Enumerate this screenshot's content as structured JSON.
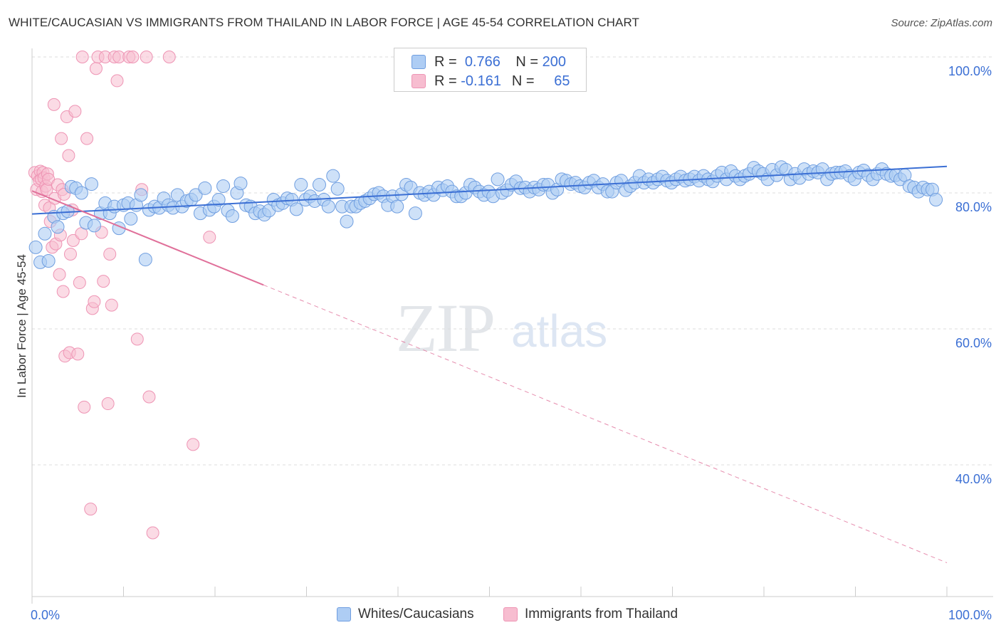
{
  "title": "WHITE/CAUCASIAN VS IMMIGRANTS FROM THAILAND IN LABOR FORCE | AGE 45-54 CORRELATION CHART",
  "source": "Source: ZipAtlas.com",
  "watermark": {
    "zip": "ZIP",
    "atlas": "atlas"
  },
  "colors": {
    "blue": "#3b6fd4",
    "blue_fill": "#aecdf4",
    "blue_stroke": "#6f9ee0",
    "pink": "#e0709a",
    "pink_fill": "#f7bdd0",
    "pink_stroke": "#ee94b4",
    "grid": "#dddddd",
    "axis_text": "#3b6fd4"
  },
  "legend_top": {
    "rows": [
      {
        "r_label": "R =",
        "r_value": "0.766",
        "n_label": "N =",
        "n_value": "200"
      },
      {
        "r_label": "R =",
        "r_value": "-0.161",
        "n_label": "N =",
        "n_value": "65"
      }
    ]
  },
  "legend_bottom": [
    "Whites/Caucasians",
    "Immigrants from Thailand"
  ],
  "chart_data": {
    "type": "scatter",
    "title": "WHITE/CAUCASIAN VS IMMIGRANTS FROM THAILAND IN LABOR FORCE | AGE 45-54 CORRELATION CHART",
    "xlabel": "",
    "ylabel": "In Labor Force | Age 45-54",
    "xlim": [
      0,
      100
    ],
    "ylim": [
      20,
      104
    ],
    "x_tick_labels": [
      {
        "value": 0,
        "label": "0.0%"
      },
      {
        "value": 100,
        "label": "100.0%"
      }
    ],
    "y_tick_labels": [
      {
        "value": 100,
        "label": "100.0%"
      },
      {
        "value": 80,
        "label": "80.0%"
      },
      {
        "value": 60,
        "label": "60.0%"
      },
      {
        "value": 40,
        "label": "40.0%"
      }
    ],
    "grid": true,
    "legend_position": "top-center",
    "series": [
      {
        "name": "Whites/Caucasians",
        "color": "#3b6fd4",
        "trend": {
          "x": [
            0,
            100
          ],
          "y": [
            76.9,
            83.9
          ],
          "style": "solid"
        },
        "points": [
          [
            0.4,
            72.0
          ],
          [
            0.9,
            69.8
          ],
          [
            1.4,
            74.0
          ],
          [
            1.8,
            70.0
          ],
          [
            2.4,
            76.5
          ],
          [
            2.8,
            75.0
          ],
          [
            3.4,
            77.0
          ],
          [
            3.9,
            77.3
          ],
          [
            4.3,
            80.9
          ],
          [
            4.8,
            80.7
          ],
          [
            5.4,
            80.0
          ],
          [
            5.9,
            75.6
          ],
          [
            6.5,
            81.3
          ],
          [
            6.8,
            75.2
          ],
          [
            7.5,
            77.0
          ],
          [
            8.0,
            78.5
          ],
          [
            8.5,
            77.0
          ],
          [
            9.0,
            78.0
          ],
          [
            9.5,
            74.8
          ],
          [
            10.0,
            78.2
          ],
          [
            10.5,
            78.5
          ],
          [
            10.8,
            76.2
          ],
          [
            11.4,
            78.2
          ],
          [
            11.9,
            79.7
          ],
          [
            12.4,
            70.2
          ],
          [
            12.8,
            77.5
          ],
          [
            13.4,
            78.0
          ],
          [
            13.9,
            77.8
          ],
          [
            14.4,
            79.2
          ],
          [
            14.9,
            78.2
          ],
          [
            15.4,
            77.8
          ],
          [
            15.9,
            79.7
          ],
          [
            16.4,
            78.0
          ],
          [
            16.9,
            78.8
          ],
          [
            17.4,
            79.0
          ],
          [
            17.9,
            79.7
          ],
          [
            18.4,
            77.0
          ],
          [
            18.9,
            80.7
          ],
          [
            19.4,
            77.5
          ],
          [
            19.9,
            78.0
          ],
          [
            20.4,
            79.0
          ],
          [
            20.9,
            81.0
          ],
          [
            21.4,
            77.4
          ],
          [
            21.9,
            76.6
          ],
          [
            22.4,
            80.0
          ],
          [
            22.8,
            81.4
          ],
          [
            23.4,
            78.2
          ],
          [
            23.9,
            78.0
          ],
          [
            24.4,
            77.0
          ],
          [
            24.9,
            77.3
          ],
          [
            25.4,
            76.8
          ],
          [
            25.9,
            77.4
          ],
          [
            26.4,
            79.0
          ],
          [
            26.9,
            78.2
          ],
          [
            27.4,
            78.5
          ],
          [
            27.9,
            79.2
          ],
          [
            28.4,
            79.0
          ],
          [
            28.9,
            77.6
          ],
          [
            29.4,
            81.2
          ],
          [
            29.9,
            79.0
          ],
          [
            30.4,
            79.5
          ],
          [
            30.9,
            78.8
          ],
          [
            31.4,
            81.2
          ],
          [
            31.9,
            79.0
          ],
          [
            32.4,
            78.0
          ],
          [
            32.9,
            82.5
          ],
          [
            33.4,
            80.6
          ],
          [
            33.9,
            78.0
          ],
          [
            34.4,
            75.8
          ],
          [
            34.9,
            78.0
          ],
          [
            35.4,
            78.0
          ],
          [
            35.9,
            78.5
          ],
          [
            36.4,
            78.8
          ],
          [
            36.9,
            79.2
          ],
          [
            37.4,
            79.8
          ],
          [
            37.9,
            80.0
          ],
          [
            38.4,
            79.5
          ],
          [
            38.9,
            78.2
          ],
          [
            39.4,
            79.5
          ],
          [
            39.9,
            78.0
          ],
          [
            40.4,
            79.8
          ],
          [
            40.9,
            81.2
          ],
          [
            41.4,
            80.8
          ],
          [
            41.9,
            77.0
          ],
          [
            42.4,
            80.0
          ],
          [
            42.9,
            79.7
          ],
          [
            43.4,
            80.2
          ],
          [
            43.9,
            79.7
          ],
          [
            44.4,
            80.8
          ],
          [
            44.9,
            80.4
          ],
          [
            45.4,
            81.0
          ],
          [
            45.9,
            80.2
          ],
          [
            46.4,
            79.5
          ],
          [
            46.9,
            79.5
          ],
          [
            47.4,
            80.0
          ],
          [
            47.9,
            81.2
          ],
          [
            48.4,
            80.8
          ],
          [
            48.9,
            80.2
          ],
          [
            49.4,
            79.7
          ],
          [
            49.9,
            80.2
          ],
          [
            50.4,
            79.5
          ],
          [
            50.9,
            82.0
          ],
          [
            51.4,
            80.0
          ],
          [
            51.9,
            80.4
          ],
          [
            52.4,
            81.2
          ],
          [
            52.9,
            81.7
          ],
          [
            53.4,
            80.7
          ],
          [
            53.9,
            80.8
          ],
          [
            54.4,
            80.2
          ],
          [
            54.9,
            80.8
          ],
          [
            55.4,
            80.5
          ],
          [
            55.9,
            81.2
          ],
          [
            56.4,
            81.2
          ],
          [
            56.9,
            80.0
          ],
          [
            57.4,
            80.5
          ],
          [
            57.9,
            82.0
          ],
          [
            58.4,
            81.8
          ],
          [
            58.9,
            81.3
          ],
          [
            59.4,
            81.5
          ],
          [
            59.9,
            81.0
          ],
          [
            60.4,
            80.8
          ],
          [
            60.9,
            81.5
          ],
          [
            61.4,
            81.8
          ],
          [
            61.9,
            80.8
          ],
          [
            62.4,
            81.3
          ],
          [
            62.9,
            80.2
          ],
          [
            63.4,
            80.2
          ],
          [
            63.9,
            81.5
          ],
          [
            64.4,
            81.8
          ],
          [
            64.9,
            80.4
          ],
          [
            65.4,
            81.0
          ],
          [
            65.9,
            81.5
          ],
          [
            66.4,
            82.5
          ],
          [
            66.9,
            81.5
          ],
          [
            67.4,
            82.0
          ],
          [
            67.9,
            81.5
          ],
          [
            68.4,
            82.0
          ],
          [
            68.9,
            82.4
          ],
          [
            69.4,
            81.8
          ],
          [
            69.9,
            81.5
          ],
          [
            70.4,
            82.0
          ],
          [
            70.9,
            82.4
          ],
          [
            71.4,
            81.8
          ],
          [
            71.9,
            82.0
          ],
          [
            72.4,
            82.4
          ],
          [
            72.9,
            81.8
          ],
          [
            73.4,
            82.5
          ],
          [
            73.9,
            82.0
          ],
          [
            74.4,
            81.7
          ],
          [
            74.9,
            82.5
          ],
          [
            75.4,
            83.0
          ],
          [
            75.9,
            82.0
          ],
          [
            76.4,
            83.2
          ],
          [
            76.9,
            82.5
          ],
          [
            77.4,
            82.0
          ],
          [
            77.9,
            82.5
          ],
          [
            78.4,
            82.8
          ],
          [
            78.9,
            83.7
          ],
          [
            79.4,
            83.2
          ],
          [
            79.9,
            82.8
          ],
          [
            80.4,
            82.0
          ],
          [
            80.9,
            83.4
          ],
          [
            81.4,
            82.6
          ],
          [
            81.9,
            83.8
          ],
          [
            82.4,
            83.4
          ],
          [
            82.9,
            82.0
          ],
          [
            83.4,
            82.8
          ],
          [
            83.9,
            82.2
          ],
          [
            84.4,
            83.5
          ],
          [
            84.9,
            82.8
          ],
          [
            85.4,
            83.2
          ],
          [
            85.9,
            83.0
          ],
          [
            86.4,
            83.5
          ],
          [
            86.9,
            82.0
          ],
          [
            87.4,
            82.8
          ],
          [
            87.9,
            83.0
          ],
          [
            88.4,
            83.0
          ],
          [
            88.9,
            83.2
          ],
          [
            89.4,
            82.5
          ],
          [
            89.9,
            82.0
          ],
          [
            90.4,
            83.0
          ],
          [
            90.9,
            83.3
          ],
          [
            91.4,
            82.6
          ],
          [
            91.9,
            82.0
          ],
          [
            92.4,
            82.8
          ],
          [
            92.9,
            83.5
          ],
          [
            93.4,
            82.8
          ],
          [
            93.9,
            82.5
          ],
          [
            94.4,
            82.6
          ],
          [
            94.9,
            82.0
          ],
          [
            95.4,
            82.6
          ],
          [
            95.9,
            81.0
          ],
          [
            96.4,
            80.8
          ],
          [
            96.9,
            80.2
          ],
          [
            97.4,
            80.8
          ],
          [
            97.9,
            80.5
          ],
          [
            98.4,
            80.5
          ],
          [
            98.8,
            79.0
          ]
        ]
      },
      {
        "name": "Immigrants from Thailand",
        "color": "#e0709a",
        "trend": {
          "x": [
            0,
            100
          ],
          "y": [
            80.3,
            25.6
          ],
          "solid_until": 25.3,
          "style": "solid-then-dashed"
        },
        "points": [
          [
            0.3,
            83.0
          ],
          [
            0.5,
            80.5
          ],
          [
            0.6,
            82.5
          ],
          [
            0.8,
            81.8
          ],
          [
            0.9,
            83.2
          ],
          [
            1.0,
            82.0
          ],
          [
            1.1,
            80.2
          ],
          [
            1.2,
            83.0
          ],
          [
            1.3,
            82.2
          ],
          [
            1.4,
            78.2
          ],
          [
            1.5,
            81.0
          ],
          [
            1.6,
            80.5
          ],
          [
            1.7,
            82.8
          ],
          [
            1.8,
            82.0
          ],
          [
            1.9,
            77.8
          ],
          [
            2.0,
            75.8
          ],
          [
            2.2,
            72.0
          ],
          [
            2.4,
            93.0
          ],
          [
            2.5,
            79.2
          ],
          [
            2.6,
            72.5
          ],
          [
            2.8,
            81.2
          ],
          [
            3.0,
            68.0
          ],
          [
            3.1,
            73.8
          ],
          [
            3.2,
            88.0
          ],
          [
            3.3,
            80.5
          ],
          [
            3.4,
            65.5
          ],
          [
            3.5,
            79.8
          ],
          [
            3.6,
            56.0
          ],
          [
            3.8,
            91.2
          ],
          [
            4.0,
            85.5
          ],
          [
            4.1,
            56.5
          ],
          [
            4.2,
            71.0
          ],
          [
            4.4,
            77.5
          ],
          [
            4.5,
            73.0
          ],
          [
            4.7,
            92.0
          ],
          [
            5.0,
            56.3
          ],
          [
            5.2,
            66.8
          ],
          [
            5.4,
            74.0
          ],
          [
            5.5,
            100.0
          ],
          [
            5.7,
            48.5
          ],
          [
            6.0,
            88.0
          ],
          [
            6.4,
            33.5
          ],
          [
            6.6,
            63.0
          ],
          [
            6.8,
            64.0
          ],
          [
            7.0,
            98.3
          ],
          [
            7.2,
            100.0
          ],
          [
            7.6,
            74.2
          ],
          [
            7.8,
            67.0
          ],
          [
            8.0,
            100.0
          ],
          [
            8.3,
            49.0
          ],
          [
            8.5,
            71.0
          ],
          [
            8.7,
            63.5
          ],
          [
            9.0,
            100.0
          ],
          [
            9.3,
            96.5
          ],
          [
            9.5,
            100.0
          ],
          [
            10.6,
            100.0
          ],
          [
            11.0,
            100.0
          ],
          [
            12.0,
            80.5
          ],
          [
            12.5,
            100.0
          ],
          [
            15.0,
            100.0
          ],
          [
            11.5,
            58.5
          ],
          [
            12.8,
            50.0
          ],
          [
            13.2,
            30.0
          ],
          [
            17.6,
            43.0
          ],
          [
            19.4,
            73.5
          ]
        ]
      }
    ]
  }
}
